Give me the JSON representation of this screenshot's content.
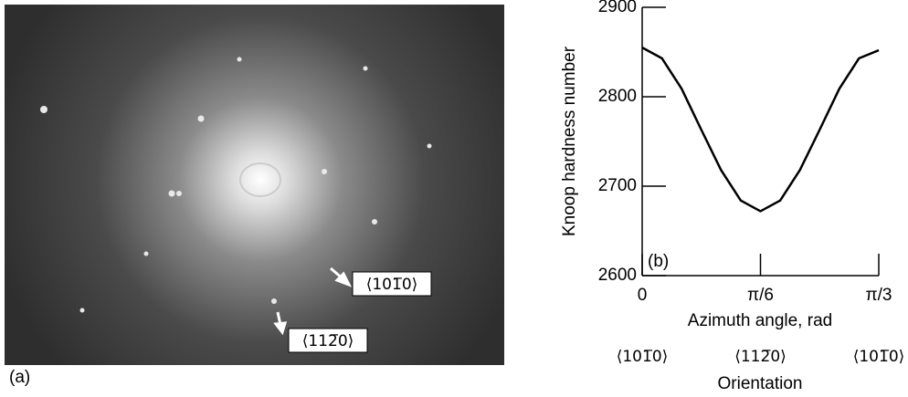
{
  "figure_a": {
    "label": "(a)",
    "annotations": [
      "⟨101̅0⟩",
      "⟨112̅0⟩"
    ]
  },
  "chart_data": {
    "type": "line",
    "panel_label": "(b)",
    "y_label": "Knoop hardness number",
    "x_label": "Azimuth angle, rad",
    "secondary_x_label": "Orientation",
    "secondary_x_labels": [
      {
        "value": 0,
        "label": "⟨101̅0⟩"
      },
      {
        "value": 0.5236,
        "label": "⟨112̅0⟩"
      },
      {
        "value": 1.0472,
        "label": "⟨101̅0⟩"
      }
    ],
    "x": [
      0,
      0.0873,
      0.1745,
      0.2618,
      0.3491,
      0.4363,
      0.5236,
      0.6109,
      0.6981,
      0.7854,
      0.8727,
      0.9599,
      1.0472
    ],
    "values": [
      2855,
      2843,
      2809,
      2763,
      2718,
      2684,
      2672,
      2684,
      2718,
      2763,
      2809,
      2843,
      2852
    ],
    "color": "#000000",
    "xlim": [
      0,
      1.0472
    ],
    "xticks": [
      {
        "value": 0,
        "label": "0"
      },
      {
        "value": 0.5236,
        "label": "π/6"
      },
      {
        "value": 1.0472,
        "label": "π/3"
      }
    ],
    "ylim": [
      2600,
      2900
    ],
    "yticks": [
      2600,
      2700,
      2800,
      2900
    ],
    "grid": false
  }
}
